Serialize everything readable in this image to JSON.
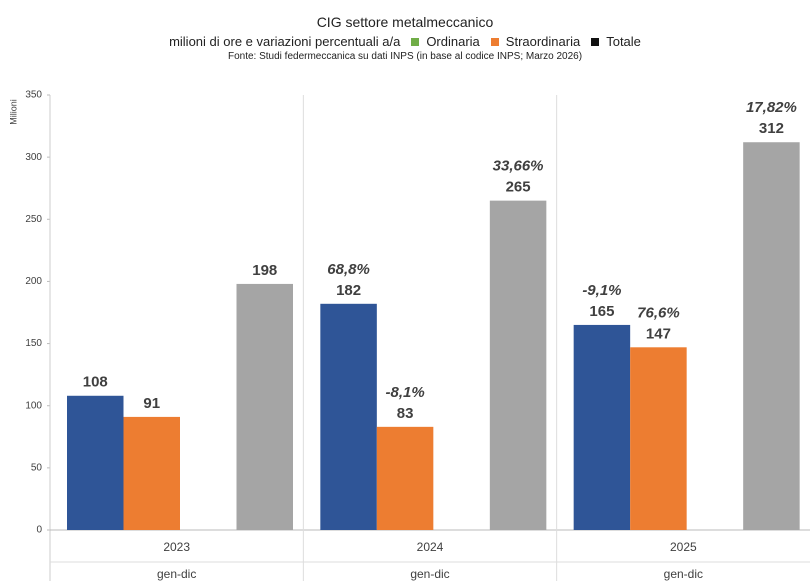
{
  "chart_data": {
    "type": "bar",
    "subtitle": "CIG settore metalmeccanico",
    "description": "milioni di ore e variazioni percentuali a/a",
    "source": "Fonte: Studi federmeccanica su dati INPS  (in base al codice INPS; Marzo 2026)",
    "ylabel": "Milioni",
    "categories": [
      "2023",
      "2024",
      "2025"
    ],
    "sub_categories": [
      "gen-dic",
      "gen-dic",
      "gen-dic"
    ],
    "series": [
      {
        "name": "Ordinaria",
        "color": "#2f5597",
        "legend_color": "#70ad47",
        "label_color": "#2f5597",
        "values": [
          108,
          182,
          165
        ],
        "changes": [
          null,
          "68,8%",
          "-9,1%"
        ]
      },
      {
        "name": "Straordinaria",
        "color": "#ed7d31",
        "legend_color": "#ed7d31",
        "label_color": "#ed7d31",
        "values": [
          91,
          83,
          147
        ],
        "changes": [
          null,
          "-8,1%",
          "76,6%"
        ]
      },
      {
        "name": "Totale",
        "color": "#a5a5a5",
        "legend_color": "#111111",
        "label_color": "#404040",
        "values": [
          198,
          265,
          312
        ],
        "changes": [
          null,
          "33,66%",
          "17,82%"
        ]
      }
    ],
    "ylim": [
      0,
      350
    ],
    "yticks": [
      0,
      50,
      100,
      150,
      200,
      250,
      300,
      350
    ]
  }
}
